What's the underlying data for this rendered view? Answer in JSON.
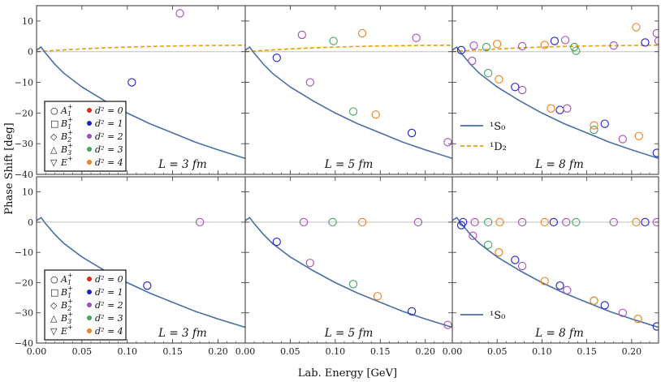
{
  "chart_data": {
    "type": "scatter",
    "ylabel": "Phase Shift [deg]",
    "xlabel": "Lab. Energy [GeV]",
    "xlim": [
      0,
      0.23
    ],
    "x_ticks": [
      "0.00",
      "0.05",
      "0.10",
      "0.15",
      "0.20"
    ],
    "x_tick_values": [
      0,
      0.05,
      0.1,
      0.15,
      0.2
    ],
    "ylim": [
      -40,
      15
    ],
    "y_ticks": [
      "10",
      "0",
      "−10",
      "−20",
      "−30",
      "−40"
    ],
    "y_tick_values": [
      10,
      0,
      -10,
      -20,
      -30,
      -40
    ],
    "colors": {
      "d0": "#e8261f",
      "d1": "#1f1fc8",
      "d2": "#a14fb8",
      "d3": "#3fa860",
      "d4": "#ef7f1a",
      "s0": "#4a6fa5",
      "d2wave": "#e8a000",
      "zero": "#c0c0c0"
    },
    "irrep_legend": [
      {
        "symbol": "○",
        "irrep": "A",
        "sub": "1",
        "sup": "+"
      },
      {
        "symbol": "□",
        "irrep": "B",
        "sub": "1",
        "sup": "+"
      },
      {
        "symbol": "◇",
        "irrep": "B",
        "sub": "2",
        "sup": "+"
      },
      {
        "symbol": "△",
        "irrep": "B",
        "sub": "3",
        "sup": "+"
      },
      {
        "symbol": "▽",
        "irrep": "E",
        "sub": "",
        "sup": "+"
      }
    ],
    "d2_legend": [
      {
        "label": "d² = 0",
        "color_key": "d0"
      },
      {
        "label": "d² = 1",
        "color_key": "d1"
      },
      {
        "label": "d² = 2",
        "color_key": "d2"
      },
      {
        "label": "d² = 3",
        "color_key": "d3"
      },
      {
        "label": "d² = 4",
        "color_key": "d4"
      }
    ],
    "wave_legend": [
      {
        "label": "¹S₀",
        "style": "solid"
      },
      {
        "label": "¹D₂",
        "style": "dashed"
      }
    ],
    "wave_legend_bottom": [
      {
        "label": "¹S₀",
        "style": "solid"
      }
    ],
    "curve_s0": {
      "x": [
        0.0,
        0.005,
        0.01,
        0.02,
        0.03,
        0.05,
        0.075,
        0.1,
        0.125,
        0.15,
        0.175,
        0.2,
        0.23
      ],
      "y": [
        0.5,
        1.5,
        -0.5,
        -4.0,
        -7.0,
        -11.5,
        -16.0,
        -20.0,
        -23.5,
        -26.5,
        -29.5,
        -32.0,
        -34.8
      ]
    },
    "curve_d2": {
      "x": [
        0.0,
        0.02,
        0.05,
        0.08,
        0.11,
        0.14,
        0.17,
        0.2,
        0.23
      ],
      "y": [
        0.0,
        0.4,
        0.9,
        1.3,
        1.6,
        1.8,
        1.95,
        2.05,
        2.1
      ]
    },
    "panels": [
      {
        "row": 0,
        "col": 0,
        "label": "L = 3 fm",
        "points": [
          {
            "x": 0.105,
            "y": -10.0,
            "c": "d1"
          },
          {
            "x": 0.158,
            "y": 12.5,
            "c": "d2"
          }
        ]
      },
      {
        "row": 0,
        "col": 1,
        "label": "L = 5 fm",
        "points": [
          {
            "x": 0.035,
            "y": -2.0,
            "c": "d1"
          },
          {
            "x": 0.063,
            "y": 5.5,
            "c": "d2"
          },
          {
            "x": 0.072,
            "y": -10.0,
            "c": "d2"
          },
          {
            "x": 0.098,
            "y": 3.5,
            "c": "d3"
          },
          {
            "x": 0.12,
            "y": -19.5,
            "c": "d3"
          },
          {
            "x": 0.13,
            "y": 6.0,
            "c": "d4"
          },
          {
            "x": 0.145,
            "y": -20.5,
            "c": "d4"
          },
          {
            "x": 0.185,
            "y": -26.5,
            "c": "d1"
          },
          {
            "x": 0.19,
            "y": 4.5,
            "c": "d2"
          },
          {
            "x": 0.225,
            "y": -29.5,
            "c": "d2"
          }
        ]
      },
      {
        "row": 0,
        "col": 2,
        "label": "L = 8 fm",
        "points": [
          {
            "x": 0.01,
            "y": 0.5,
            "c": "d1"
          },
          {
            "x": 0.022,
            "y": -3.0,
            "c": "d2"
          },
          {
            "x": 0.024,
            "y": 2.0,
            "c": "d2"
          },
          {
            "x": 0.04,
            "y": -7.0,
            "c": "d3"
          },
          {
            "x": 0.038,
            "y": 1.5,
            "c": "d3"
          },
          {
            "x": 0.052,
            "y": -9.0,
            "c": "d4"
          },
          {
            "x": 0.05,
            "y": 2.5,
            "c": "d4"
          },
          {
            "x": 0.07,
            "y": -11.5,
            "c": "d1"
          },
          {
            "x": 0.078,
            "y": -12.5,
            "c": "d2"
          },
          {
            "x": 0.078,
            "y": 1.8,
            "c": "d2"
          },
          {
            "x": 0.11,
            "y": -18.5,
            "c": "d4"
          },
          {
            "x": 0.103,
            "y": 2.2,
            "c": "d4"
          },
          {
            "x": 0.114,
            "y": 3.5,
            "c": "d1"
          },
          {
            "x": 0.12,
            "y": -19.0,
            "c": "d1"
          },
          {
            "x": 0.126,
            "y": 3.8,
            "c": "d2"
          },
          {
            "x": 0.128,
            "y": -18.5,
            "c": "d2"
          },
          {
            "x": 0.136,
            "y": 1.5,
            "c": "d3"
          },
          {
            "x": 0.138,
            "y": 0.3,
            "c": "d3"
          },
          {
            "x": 0.158,
            "y": -25.5,
            "c": "d3"
          },
          {
            "x": 0.158,
            "y": -24.0,
            "c": "d4"
          },
          {
            "x": 0.17,
            "y": -23.5,
            "c": "d1"
          },
          {
            "x": 0.18,
            "y": 2.0,
            "c": "d2"
          },
          {
            "x": 0.19,
            "y": -28.5,
            "c": "d2"
          },
          {
            "x": 0.205,
            "y": 8.0,
            "c": "d4"
          },
          {
            "x": 0.208,
            "y": -27.5,
            "c": "d4"
          },
          {
            "x": 0.215,
            "y": 3.0,
            "c": "d1"
          },
          {
            "x": 0.228,
            "y": -33.0,
            "c": "d1"
          },
          {
            "x": 0.228,
            "y": 6.0,
            "c": "d2"
          },
          {
            "x": 0.23,
            "y": 3.5,
            "c": "d2"
          }
        ]
      },
      {
        "row": 1,
        "col": 0,
        "label": "L = 3 fm",
        "points": [
          {
            "x": 0.122,
            "y": -21.0,
            "c": "d1"
          },
          {
            "x": 0.18,
            "y": 0.0,
            "c": "d2"
          }
        ]
      },
      {
        "row": 1,
        "col": 1,
        "label": "L = 5 fm",
        "points": [
          {
            "x": 0.035,
            "y": -6.5,
            "c": "d1"
          },
          {
            "x": 0.065,
            "y": 0.0,
            "c": "d2"
          },
          {
            "x": 0.072,
            "y": -13.5,
            "c": "d2"
          },
          {
            "x": 0.097,
            "y": 0.0,
            "c": "d3"
          },
          {
            "x": 0.12,
            "y": -20.5,
            "c": "d3"
          },
          {
            "x": 0.13,
            "y": 0.0,
            "c": "d4"
          },
          {
            "x": 0.147,
            "y": -24.5,
            "c": "d4"
          },
          {
            "x": 0.185,
            "y": -29.5,
            "c": "d1"
          },
          {
            "x": 0.192,
            "y": 0.0,
            "c": "d2"
          },
          {
            "x": 0.225,
            "y": -34.0,
            "c": "d2"
          }
        ]
      },
      {
        "row": 1,
        "col": 2,
        "label": "L = 8 fm",
        "points": [
          {
            "x": 0.01,
            "y": -1.0,
            "c": "d1"
          },
          {
            "x": 0.012,
            "y": 0.0,
            "c": "d1"
          },
          {
            "x": 0.023,
            "y": -4.5,
            "c": "d2"
          },
          {
            "x": 0.025,
            "y": 0.0,
            "c": "d2"
          },
          {
            "x": 0.04,
            "y": -7.5,
            "c": "d3"
          },
          {
            "x": 0.04,
            "y": 0.0,
            "c": "d3"
          },
          {
            "x": 0.052,
            "y": -10.0,
            "c": "d4"
          },
          {
            "x": 0.053,
            "y": 0.0,
            "c": "d4"
          },
          {
            "x": 0.07,
            "y": -12.5,
            "c": "d1"
          },
          {
            "x": 0.078,
            "y": -14.5,
            "c": "d2"
          },
          {
            "x": 0.078,
            "y": 0.0,
            "c": "d2"
          },
          {
            "x": 0.103,
            "y": -19.5,
            "c": "d4"
          },
          {
            "x": 0.103,
            "y": 0.0,
            "c": "d4"
          },
          {
            "x": 0.113,
            "y": 0.0,
            "c": "d1"
          },
          {
            "x": 0.12,
            "y": -21.0,
            "c": "d1"
          },
          {
            "x": 0.127,
            "y": 0.0,
            "c": "d2"
          },
          {
            "x": 0.128,
            "y": -22.5,
            "c": "d2"
          },
          {
            "x": 0.138,
            "y": 0.0,
            "c": "d3"
          },
          {
            "x": 0.158,
            "y": -26.0,
            "c": "d3"
          },
          {
            "x": 0.158,
            "y": -26.0,
            "c": "d4"
          },
          {
            "x": 0.17,
            "y": -27.5,
            "c": "d1"
          },
          {
            "x": 0.18,
            "y": 0.0,
            "c": "d2"
          },
          {
            "x": 0.19,
            "y": -30.0,
            "c": "d2"
          },
          {
            "x": 0.205,
            "y": 0.0,
            "c": "d4"
          },
          {
            "x": 0.207,
            "y": -32.0,
            "c": "d4"
          },
          {
            "x": 0.215,
            "y": 0.0,
            "c": "d1"
          },
          {
            "x": 0.228,
            "y": -34.5,
            "c": "d1"
          },
          {
            "x": 0.228,
            "y": 0.0,
            "c": "d2"
          }
        ]
      }
    ]
  }
}
